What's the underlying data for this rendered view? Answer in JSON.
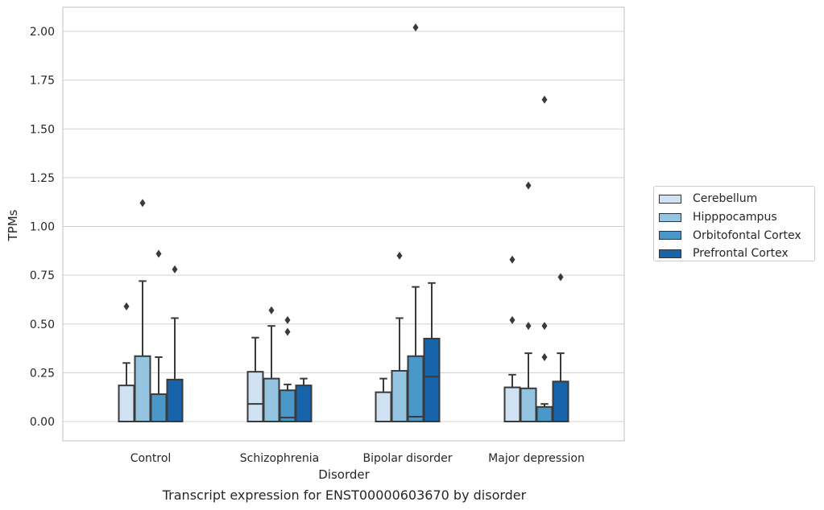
{
  "chart_data": {
    "type": "box",
    "title": "",
    "xlabel": "Disorder",
    "ylabel": "TPMs",
    "caption": "Transcript expression for ENST00000603670 by disorder",
    "ylim": [
      -0.1,
      2.13
    ],
    "yticks": [
      0.0,
      0.25,
      0.5,
      0.75,
      1.0,
      1.25,
      1.5,
      1.75,
      2.0
    ],
    "ytick_labels": [
      "0.00",
      "0.25",
      "0.50",
      "0.75",
      "1.00",
      "1.25",
      "1.50",
      "1.75",
      "2.00"
    ],
    "grid": "horizontal",
    "legend_position": "right",
    "categories": [
      "Control",
      "Schizophrenia",
      "Bipolar disorder",
      "Major depression"
    ],
    "series": [
      {
        "name": "Cerebellum",
        "color": "#d0e1f2",
        "boxes": [
          {
            "whislo": 0.0,
            "q1": 0.0,
            "med": 0.0,
            "q3": 0.185,
            "whishi": 0.3,
            "fliers": [
              0.59
            ]
          },
          {
            "whislo": 0.0,
            "q1": 0.0,
            "med": 0.09,
            "q3": 0.255,
            "whishi": 0.43,
            "fliers": []
          },
          {
            "whislo": 0.0,
            "q1": 0.0,
            "med": 0.0,
            "q3": 0.15,
            "whishi": 0.22,
            "fliers": []
          },
          {
            "whislo": 0.0,
            "q1": 0.0,
            "med": 0.0,
            "q3": 0.175,
            "whishi": 0.24,
            "fliers": [
              0.52,
              0.83
            ]
          }
        ]
      },
      {
        "name": "Hipppocampus",
        "color": "#94c4df",
        "boxes": [
          {
            "whislo": 0.0,
            "q1": 0.0,
            "med": 0.0,
            "q3": 0.335,
            "whishi": 0.72,
            "fliers": [
              1.12
            ]
          },
          {
            "whislo": 0.0,
            "q1": 0.0,
            "med": 0.0,
            "q3": 0.22,
            "whishi": 0.49,
            "fliers": [
              0.57
            ]
          },
          {
            "whislo": 0.0,
            "q1": 0.0,
            "med": 0.0,
            "q3": 0.26,
            "whishi": 0.53,
            "fliers": [
              0.85
            ]
          },
          {
            "whislo": 0.0,
            "q1": 0.0,
            "med": 0.0,
            "q3": 0.17,
            "whishi": 0.35,
            "fliers": [
              0.49,
              1.21
            ]
          }
        ]
      },
      {
        "name": "Orbitofontal Cortex",
        "color": "#4a98c9",
        "boxes": [
          {
            "whislo": 0.0,
            "q1": 0.0,
            "med": 0.0,
            "q3": 0.14,
            "whishi": 0.33,
            "fliers": [
              0.86
            ]
          },
          {
            "whislo": 0.0,
            "q1": 0.0,
            "med": 0.02,
            "q3": 0.16,
            "whishi": 0.19,
            "fliers": [
              0.46,
              0.52
            ]
          },
          {
            "whislo": 0.0,
            "q1": 0.0,
            "med": 0.025,
            "q3": 0.335,
            "whishi": 0.69,
            "fliers": [
              2.02
            ]
          },
          {
            "whislo": 0.0,
            "q1": 0.0,
            "med": 0.0,
            "q3": 0.075,
            "whishi": 0.09,
            "fliers": [
              0.33,
              0.49,
              1.65
            ]
          }
        ]
      },
      {
        "name": "Prefrontal Cortex",
        "color": "#1764ab",
        "boxes": [
          {
            "whislo": 0.0,
            "q1": 0.0,
            "med": 0.0,
            "q3": 0.215,
            "whishi": 0.53,
            "fliers": [
              0.78
            ]
          },
          {
            "whislo": 0.0,
            "q1": 0.0,
            "med": 0.0,
            "q3": 0.185,
            "whishi": 0.22,
            "fliers": []
          },
          {
            "whislo": 0.0,
            "q1": 0.0,
            "med": 0.23,
            "q3": 0.425,
            "whishi": 0.71,
            "fliers": []
          },
          {
            "whislo": 0.0,
            "q1": 0.0,
            "med": 0.0,
            "q3": 0.205,
            "whishi": 0.35,
            "fliers": [
              0.74
            ]
          }
        ]
      }
    ]
  }
}
